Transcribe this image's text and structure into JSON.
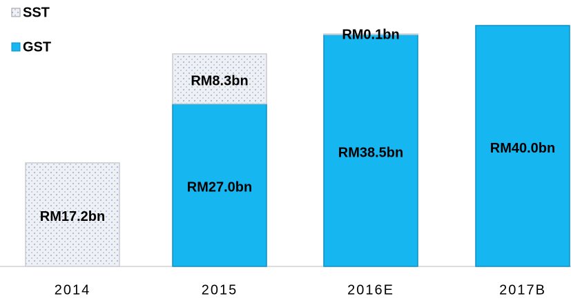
{
  "chart_data": {
    "type": "bar",
    "stacked": true,
    "categories": [
      "2014",
      "2015",
      "2016E",
      "2017B"
    ],
    "series": [
      {
        "name": "SST",
        "color": "#e6e9ee",
        "values": [
          17.2,
          8.3,
          0.1,
          null
        ],
        "value_labels": [
          "RM17.2bn",
          "RM8.3bn",
          "RM0.1bn",
          null
        ]
      },
      {
        "name": "GST",
        "color": "#16b6f0",
        "values": [
          null,
          27.0,
          38.5,
          40.0
        ],
        "value_labels": [
          null,
          "RM27.0bn",
          "RM38.5bn",
          "RM40.0bn"
        ]
      }
    ]
  }
}
